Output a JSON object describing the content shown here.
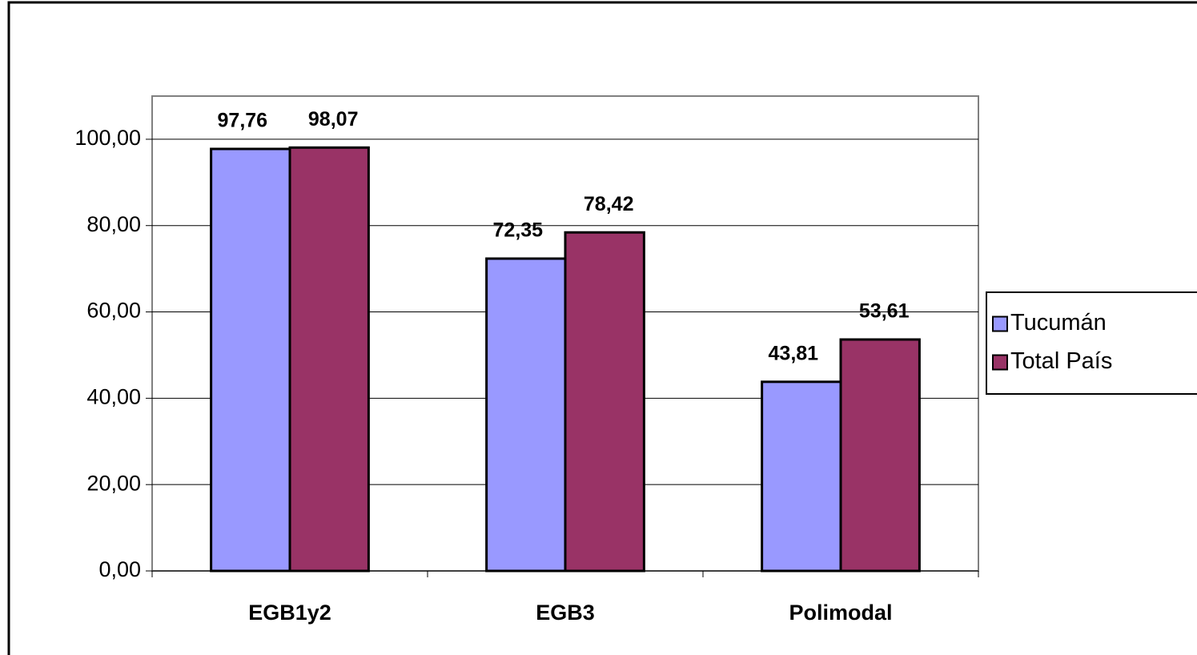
{
  "chart_data": {
    "type": "bar",
    "categories": [
      "EGB1y2",
      "EGB3",
      "Polimodal"
    ],
    "series": [
      {
        "name": "Tucumán",
        "color": "#9999ff",
        "values": [
          97.76,
          72.35,
          43.81
        ],
        "value_labels": [
          "97,76",
          "72,35",
          "43,81"
        ]
      },
      {
        "name": "Total País",
        "color": "#993366",
        "values": [
          98.07,
          78.42,
          53.61
        ],
        "value_labels": [
          "98,07",
          "78,42",
          "53,61"
        ]
      }
    ],
    "ylim": [
      0,
      110
    ],
    "yticks": [
      {
        "value": 0,
        "label": "0,00"
      },
      {
        "value": 20,
        "label": "20,00"
      },
      {
        "value": 40,
        "label": "40,00"
      },
      {
        "value": 60,
        "label": "60,00"
      },
      {
        "value": 80,
        "label": "80,00"
      },
      {
        "value": 100,
        "label": "100,00"
      }
    ],
    "grid": true,
    "legend": "right"
  }
}
